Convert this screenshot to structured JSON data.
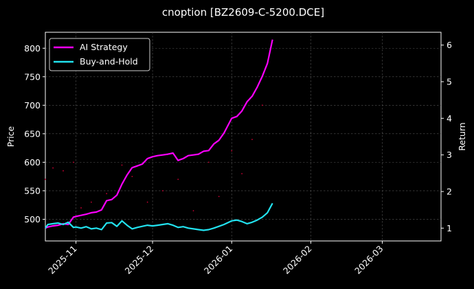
{
  "chart_data": {
    "type": "line",
    "title": "cnoption [BZ2609-C-5200.DCE]",
    "ylabel_left": "Price",
    "ylabel_right": "Return",
    "xlim": [
      "2025-10-20",
      "2026-03-24"
    ],
    "ylim_left": [
      462,
      828
    ],
    "ylim_right": [
      0.65,
      6.35
    ],
    "x_ticks": [
      "2025-11",
      "2025-12",
      "2026-01",
      "2026-02",
      "2026-03"
    ],
    "x_tick_dates": [
      "2025-11-01",
      "2025-12-01",
      "2026-01-01",
      "2026-02-01",
      "2026-03-01"
    ],
    "y_ticks_left": [
      500,
      550,
      600,
      650,
      700,
      750,
      800
    ],
    "y_ticks_right": [
      1,
      2,
      3,
      4,
      5,
      6
    ],
    "grid": true,
    "legend_position": "top-left",
    "colors": {
      "background": "#000000",
      "ai_strategy": "#ff00ff",
      "buy_and_hold": "#22e3f0",
      "price_marks": "#cc0033",
      "grid": "#555555",
      "text": "#ffffff"
    },
    "series": [
      {
        "name": "AI Strategy",
        "axis": "right",
        "x": [
          "2025-10-20",
          "2025-10-21",
          "2025-10-23",
          "2025-10-25",
          "2025-10-27",
          "2025-10-29",
          "2025-10-31",
          "2025-11-01",
          "2025-11-03",
          "2025-11-05",
          "2025-11-07",
          "2025-11-09",
          "2025-11-11",
          "2025-11-13",
          "2025-11-15",
          "2025-11-17",
          "2025-11-19",
          "2025-11-21",
          "2025-11-23",
          "2025-11-25",
          "2025-11-27",
          "2025-11-29",
          "2025-12-01",
          "2025-12-03",
          "2025-12-05",
          "2025-12-07",
          "2025-12-09",
          "2025-12-11",
          "2025-12-13",
          "2025-12-15",
          "2025-12-17",
          "2025-12-19",
          "2025-12-21",
          "2025-12-23",
          "2025-12-25",
          "2025-12-27",
          "2025-12-29",
          "2026-01-01",
          "2026-01-03",
          "2026-01-05",
          "2026-01-07",
          "2026-01-09",
          "2026-01-11",
          "2026-01-13",
          "2026-01-15",
          "2026-01-17"
        ],
        "values": [
          1.0,
          1.03,
          1.06,
          1.08,
          1.12,
          1.1,
          1.3,
          1.32,
          1.35,
          1.38,
          1.42,
          1.44,
          1.5,
          1.75,
          1.78,
          1.9,
          2.2,
          2.45,
          2.65,
          2.7,
          2.75,
          2.9,
          2.95,
          2.98,
          3.0,
          3.02,
          3.05,
          2.85,
          2.9,
          2.98,
          3.0,
          3.02,
          3.1,
          3.12,
          3.3,
          3.4,
          3.6,
          4.0,
          4.05,
          4.2,
          4.45,
          4.6,
          4.85,
          5.15,
          5.5,
          6.15
        ]
      },
      {
        "name": "Buy-and-Hold",
        "axis": "right",
        "x": [
          "2025-10-20",
          "2025-10-21",
          "2025-10-23",
          "2025-10-25",
          "2025-10-27",
          "2025-10-29",
          "2025-10-31",
          "2025-11-01",
          "2025-11-03",
          "2025-11-05",
          "2025-11-07",
          "2025-11-09",
          "2025-11-11",
          "2025-11-13",
          "2025-11-15",
          "2025-11-17",
          "2025-11-19",
          "2025-11-21",
          "2025-11-23",
          "2025-11-25",
          "2025-11-27",
          "2025-11-29",
          "2025-12-01",
          "2025-12-03",
          "2025-12-05",
          "2025-12-07",
          "2025-12-09",
          "2025-12-11",
          "2025-12-13",
          "2025-12-15",
          "2025-12-17",
          "2025-12-19",
          "2025-12-21",
          "2025-12-23",
          "2025-12-25",
          "2025-12-27",
          "2025-12-29",
          "2026-01-01",
          "2026-01-03",
          "2026-01-05",
          "2026-01-07",
          "2026-01-09",
          "2026-01-11",
          "2026-01-13",
          "2026-01-15",
          "2026-01-17"
        ],
        "values": [
          1.0,
          1.1,
          1.12,
          1.14,
          1.1,
          1.16,
          1.02,
          1.03,
          1.0,
          1.04,
          0.98,
          1.0,
          0.96,
          1.14,
          1.15,
          1.05,
          1.2,
          1.08,
          0.98,
          1.02,
          1.05,
          1.08,
          1.06,
          1.08,
          1.1,
          1.12,
          1.08,
          1.02,
          1.04,
          1.0,
          0.98,
          0.96,
          0.94,
          0.96,
          1.0,
          1.05,
          1.1,
          1.2,
          1.22,
          1.18,
          1.12,
          1.16,
          1.22,
          1.3,
          1.42,
          1.68
        ]
      },
      {
        "name": "",
        "axis": "left",
        "x": [
          "2025-10-20",
          "2025-10-23",
          "2025-10-27",
          "2025-10-31",
          "2025-11-03",
          "2025-11-07",
          "2025-11-13",
          "2025-11-19",
          "2025-11-23",
          "2025-11-29",
          "2025-12-05",
          "2025-12-11",
          "2025-12-17",
          "2025-12-23",
          "2025-12-27",
          "2026-01-01",
          "2026-01-05",
          "2026-01-09",
          "2026-01-13"
        ],
        "values": [
          570,
          590,
          585,
          600,
          520,
          530,
          545,
          595,
          575,
          530,
          550,
          570,
          515,
          600,
          540,
          620,
          580,
          640,
          700
        ]
      }
    ]
  }
}
